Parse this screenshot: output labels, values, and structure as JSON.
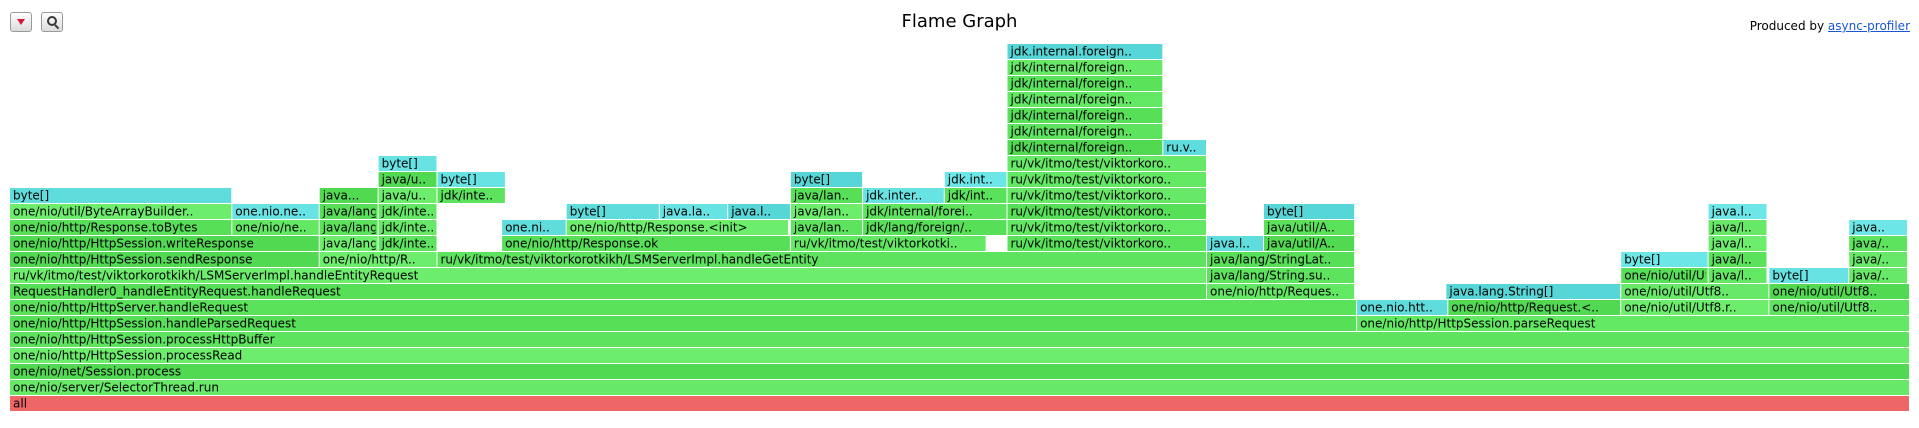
{
  "header": {
    "title": "Flame Graph",
    "produced_prefix": "Produced by",
    "produced_link": "async-profiler"
  },
  "toolbar": {
    "reverse_icon": "red-down-triangle",
    "search_icon": "magnifier"
  },
  "colors": {
    "root": "#ee6666",
    "java_green": "#5be25b",
    "allocation_cyan": "#5fdddd"
  },
  "chart_data": {
    "type": "flame",
    "title": "Flame Graph",
    "total_samples": 1000,
    "frames": [
      {
        "label": "all",
        "start": 0,
        "width": 1000,
        "depth": 0,
        "kind": "root"
      },
      {
        "label": "one/nio/server/SelectorThread.run",
        "start": 0,
        "width": 1000,
        "depth": 1,
        "kind": "java"
      },
      {
        "label": "one/nio/net/Session.process",
        "start": 0,
        "width": 1000,
        "depth": 2,
        "kind": "java"
      },
      {
        "label": "one/nio/http/HttpSession.processRead",
        "start": 0,
        "width": 1000,
        "depth": 3,
        "kind": "java"
      },
      {
        "label": "one/nio/http/HttpSession.processHttpBuffer",
        "start": 0,
        "width": 1000,
        "depth": 4,
        "kind": "java"
      },
      {
        "label": "one/nio/http/HttpSession.handleParsedRequest",
        "start": 0,
        "width": 709,
        "depth": 5,
        "kind": "java"
      },
      {
        "label": "one/nio/http/HttpSession.parseRequest",
        "start": 709,
        "width": 291,
        "depth": 5,
        "kind": "java"
      },
      {
        "label": "one/nio/http/HttpServer.handleRequest",
        "start": 0,
        "width": 709,
        "depth": 6,
        "kind": "java"
      },
      {
        "label": "one.nio.htt..",
        "start": 709,
        "width": 48,
        "depth": 6,
        "kind": "alloc"
      },
      {
        "label": "one/nio/http/Request.<..",
        "start": 757,
        "width": 91,
        "depth": 6,
        "kind": "java"
      },
      {
        "label": "one/nio/util/Utf8.r..",
        "start": 848,
        "width": 78,
        "depth": 6,
        "kind": "java"
      },
      {
        "label": "one/nio/util/Utf8..",
        "start": 926,
        "width": 74,
        "depth": 6,
        "kind": "java"
      },
      {
        "label": "RequestHandler0_handleEntityRequest.handleRequest",
        "start": 0,
        "width": 630,
        "depth": 7,
        "kind": "java"
      },
      {
        "label": "one/nio/http/Reques..",
        "start": 630,
        "width": 78,
        "depth": 7,
        "kind": "java"
      },
      {
        "label": "java.lang.String[]",
        "start": 756,
        "width": 92,
        "depth": 7,
        "kind": "alloc"
      },
      {
        "label": "one/nio/util/Utf8..",
        "start": 848,
        "width": 78,
        "depth": 7,
        "kind": "java"
      },
      {
        "label": "one/nio/util/Utf8..",
        "start": 926,
        "width": 74,
        "depth": 7,
        "kind": "java"
      },
      {
        "label": "ru/vk/itmo/test/viktorkorotkikh/LSMServerImpl.handleEntityRequest",
        "start": 0,
        "width": 630,
        "depth": 8,
        "kind": "java"
      },
      {
        "label": "java/lang/String.su..",
        "start": 630,
        "width": 78,
        "depth": 8,
        "kind": "java"
      },
      {
        "label": "one/nio/util/Utf8.t..",
        "start": 848,
        "width": 46,
        "depth": 8,
        "kind": "java"
      },
      {
        "label": "java/l..",
        "start": 894,
        "width": 31,
        "depth": 8,
        "kind": "java"
      },
      {
        "label": "byte[]",
        "start": 926,
        "width": 42,
        "depth": 8,
        "kind": "alloc"
      },
      {
        "label": "java/..",
        "start": 968,
        "width": 31,
        "depth": 8,
        "kind": "java"
      },
      {
        "label": "one/nio/http/HttpSession.sendResponse",
        "start": 0,
        "width": 163,
        "depth": 9,
        "kind": "java"
      },
      {
        "label": "one/nio/http/R..",
        "start": 163,
        "width": 62,
        "depth": 9,
        "kind": "java"
      },
      {
        "label": "ru/vk/itmo/test/viktorkorotkikh/LSMServerImpl.handleGetEntity",
        "start": 225,
        "width": 405,
        "depth": 9,
        "kind": "java"
      },
      {
        "label": "java/lang/StringLat..",
        "start": 630,
        "width": 78,
        "depth": 9,
        "kind": "java"
      },
      {
        "label": "byte[]",
        "start": 848,
        "width": 46,
        "depth": 9,
        "kind": "alloc"
      },
      {
        "label": "java/l..",
        "start": 894,
        "width": 31,
        "depth": 9,
        "kind": "java"
      },
      {
        "label": "java/..",
        "start": 968,
        "width": 31,
        "depth": 9,
        "kind": "java"
      },
      {
        "label": "one/nio/http/HttpSession.writeResponse",
        "start": 0,
        "width": 163,
        "depth": 10,
        "kind": "java"
      },
      {
        "label": "java/lang/Stri..",
        "start": 163,
        "width": 31,
        "depth": 10,
        "kind": "java"
      },
      {
        "label": "jdk/inte..",
        "start": 194,
        "width": 31,
        "depth": 10,
        "kind": "java"
      },
      {
        "label": "one/nio/http/Response.ok",
        "start": 259,
        "width": 152,
        "depth": 10,
        "kind": "java"
      },
      {
        "label": "ru/vk/itmo/test/viktorkotki..",
        "start": 411,
        "width": 103,
        "depth": 10,
        "kind": "java"
      },
      {
        "label": "ru/vk/itmo/test/viktorkoro..",
        "start": 525,
        "width": 105,
        "depth": 10,
        "kind": "java"
      },
      {
        "label": "java.l..",
        "start": 630,
        "width": 30,
        "depth": 10,
        "kind": "alloc"
      },
      {
        "label": "java/util/A..",
        "start": 660,
        "width": 48,
        "depth": 10,
        "kind": "java"
      },
      {
        "label": "java/l..",
        "start": 894,
        "width": 31,
        "depth": 10,
        "kind": "java"
      },
      {
        "label": "java/..",
        "start": 968,
        "width": 31,
        "depth": 10,
        "kind": "java"
      },
      {
        "label": "one/nio/http/Response.toBytes",
        "start": 0,
        "width": 117,
        "depth": 11,
        "kind": "java"
      },
      {
        "label": "one/nio/ne..",
        "start": 117,
        "width": 46,
        "depth": 11,
        "kind": "java"
      },
      {
        "label": "java/lang/Stri..",
        "start": 163,
        "width": 31,
        "depth": 11,
        "kind": "java"
      },
      {
        "label": "jdk/inte..",
        "start": 194,
        "width": 31,
        "depth": 11,
        "kind": "java"
      },
      {
        "label": "one.ni..",
        "start": 259,
        "width": 34,
        "depth": 11,
        "kind": "alloc"
      },
      {
        "label": "one/nio/http/Response.<init>",
        "start": 293,
        "width": 117,
        "depth": 11,
        "kind": "java"
      },
      {
        "label": "java/lan..",
        "start": 411,
        "width": 38,
        "depth": 11,
        "kind": "java"
      },
      {
        "label": "jdk/lang/foreign/..",
        "start": 449,
        "width": 76,
        "depth": 11,
        "kind": "java"
      },
      {
        "label": "ru/vk/itmo/test/viktorkoro..",
        "start": 525,
        "width": 105,
        "depth": 11,
        "kind": "java"
      },
      {
        "label": "java/util/A..",
        "start": 660,
        "width": 48,
        "depth": 11,
        "kind": "java"
      },
      {
        "label": "java/l..",
        "start": 894,
        "width": 31,
        "depth": 11,
        "kind": "java"
      },
      {
        "label": "java..",
        "start": 968,
        "width": 31,
        "depth": 11,
        "kind": "alloc"
      },
      {
        "label": "one/nio/util/ByteArrayBuilder..",
        "start": 0,
        "width": 117,
        "depth": 12,
        "kind": "java"
      },
      {
        "label": "one.nio.ne..",
        "start": 117,
        "width": 46,
        "depth": 12,
        "kind": "alloc"
      },
      {
        "label": "java/lang/Stri..",
        "start": 163,
        "width": 31,
        "depth": 12,
        "kind": "java"
      },
      {
        "label": "jdk/inte..",
        "start": 194,
        "width": 31,
        "depth": 12,
        "kind": "java"
      },
      {
        "label": "byte[]",
        "start": 293,
        "width": 49,
        "depth": 12,
        "kind": "alloc"
      },
      {
        "label": "java.la..",
        "start": 342,
        "width": 36,
        "depth": 12,
        "kind": "alloc"
      },
      {
        "label": "java.l..",
        "start": 378,
        "width": 33,
        "depth": 12,
        "kind": "alloc"
      },
      {
        "label": "java/lan..",
        "start": 411,
        "width": 38,
        "depth": 12,
        "kind": "java"
      },
      {
        "label": "jdk/internal/forei..",
        "start": 449,
        "width": 76,
        "depth": 12,
        "kind": "java"
      },
      {
        "label": "ru/vk/itmo/test/viktorkoro..",
        "start": 525,
        "width": 105,
        "depth": 12,
        "kind": "java"
      },
      {
        "label": "byte[]",
        "start": 660,
        "width": 48,
        "depth": 12,
        "kind": "alloc"
      },
      {
        "label": "java.l..",
        "start": 894,
        "width": 31,
        "depth": 12,
        "kind": "alloc"
      },
      {
        "label": "byte[]",
        "start": 0,
        "width": 117,
        "depth": 13,
        "kind": "alloc"
      },
      {
        "label": "java...",
        "start": 163,
        "width": 31,
        "depth": 13,
        "kind": "java"
      },
      {
        "label": "java/u..",
        "start": 194,
        "width": 31,
        "depth": 13,
        "kind": "java"
      },
      {
        "label": "jdk/inte..",
        "start": 225,
        "width": 36,
        "depth": 13,
        "kind": "java"
      },
      {
        "label": "java/lan..",
        "start": 411,
        "width": 38,
        "depth": 13,
        "kind": "java"
      },
      {
        "label": "jdk.inter..",
        "start": 449,
        "width": 43,
        "depth": 13,
        "kind": "alloc"
      },
      {
        "label": "jdk/int..",
        "start": 492,
        "width": 33,
        "depth": 13,
        "kind": "java"
      },
      {
        "label": "ru/vk/itmo/test/viktorkoro..",
        "start": 525,
        "width": 105,
        "depth": 13,
        "kind": "java"
      },
      {
        "label": "java/u..",
        "start": 194,
        "width": 31,
        "depth": 14,
        "kind": "java"
      },
      {
        "label": "byte[]",
        "start": 225,
        "width": 36,
        "depth": 14,
        "kind": "alloc"
      },
      {
        "label": "byte[]",
        "start": 411,
        "width": 38,
        "depth": 14,
        "kind": "alloc"
      },
      {
        "label": "jdk.int..",
        "start": 492,
        "width": 33,
        "depth": 14,
        "kind": "alloc"
      },
      {
        "label": "ru/vk/itmo/test/viktorkoro..",
        "start": 525,
        "width": 105,
        "depth": 14,
        "kind": "java"
      },
      {
        "label": "byte[]",
        "start": 194,
        "width": 31,
        "depth": 15,
        "kind": "alloc"
      },
      {
        "label": "ru/vk/itmo/test/viktorkoro..",
        "start": 525,
        "width": 105,
        "depth": 15,
        "kind": "java"
      },
      {
        "label": "jdk/internal/foreign..",
        "start": 525,
        "width": 82,
        "depth": 16,
        "kind": "java"
      },
      {
        "label": "ru.v..",
        "start": 607,
        "width": 23,
        "depth": 16,
        "kind": "alloc"
      },
      {
        "label": "jdk/internal/foreign..",
        "start": 525,
        "width": 82,
        "depth": 17,
        "kind": "java"
      },
      {
        "label": "jdk/internal/foreign..",
        "start": 525,
        "width": 82,
        "depth": 18,
        "kind": "java"
      },
      {
        "label": "jdk/internal/foreign..",
        "start": 525,
        "width": 82,
        "depth": 19,
        "kind": "java"
      },
      {
        "label": "jdk/internal/foreign..",
        "start": 525,
        "width": 82,
        "depth": 20,
        "kind": "java"
      },
      {
        "label": "jdk/internal/foreign..",
        "start": 525,
        "width": 82,
        "depth": 21,
        "kind": "java"
      },
      {
        "label": "jdk.internal.foreign..",
        "start": 525,
        "width": 82,
        "depth": 22,
        "kind": "alloc"
      }
    ]
  }
}
